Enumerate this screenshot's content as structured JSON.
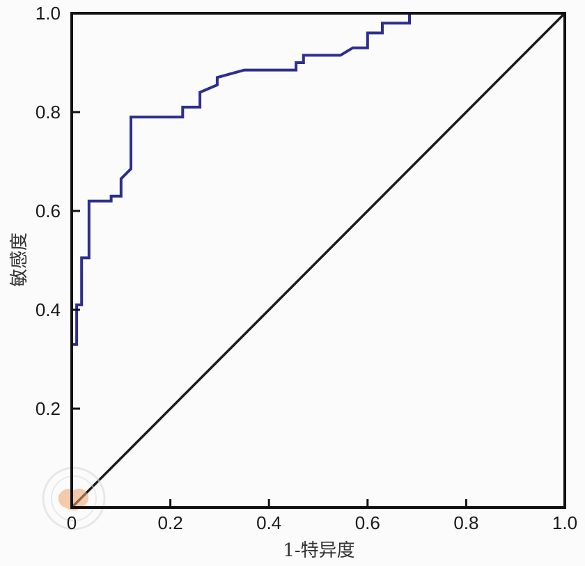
{
  "chart_data": {
    "type": "line",
    "title": "",
    "xlabel": "1-特异度",
    "ylabel": "敏感度",
    "xlim": [
      0,
      1
    ],
    "ylim": [
      0,
      1
    ],
    "x_ticks": [
      "0",
      "0.2",
      "0.4",
      "0.6",
      "0.8",
      "1.0"
    ],
    "y_ticks": [
      "0.2",
      "0.4",
      "0.6",
      "0.8",
      "1.0"
    ],
    "grid": false,
    "legend": "none",
    "series": [
      {
        "color": "#2e2e8f",
        "step": true,
        "x": [
          0,
          0,
          0.01,
          0.01,
          0.02,
          0.02,
          0.035,
          0.035,
          0.05,
          0.05,
          0.08,
          0.08,
          0.1,
          0.1,
          0.12,
          0.12,
          0.225,
          0.225,
          0.26,
          0.26,
          0.295,
          0.295,
          0.35,
          0.455,
          0.455,
          0.47,
          0.47,
          0.545,
          0.545,
          0.57,
          0.6,
          0.6,
          0.63,
          0.63,
          0.685,
          0.685,
          1.0
        ],
        "y": [
          0,
          0.33,
          0.33,
          0.41,
          0.41,
          0.505,
          0.505,
          0.62,
          0.62,
          0.62,
          0.62,
          0.63,
          0.63,
          0.665,
          0.685,
          0.79,
          0.79,
          0.81,
          0.81,
          0.84,
          0.855,
          0.87,
          0.885,
          0.885,
          0.9,
          0.9,
          0.915,
          0.915,
          0.915,
          0.93,
          0.93,
          0.96,
          0.96,
          0.98,
          0.98,
          1.0,
          1.0
        ]
      },
      {
        "color": "#1a1a1a",
        "x": [
          0,
          1
        ],
        "y": [
          0,
          1
        ]
      }
    ],
    "colors": {
      "frame": "#111111",
      "roc": "#2e2e8f",
      "diagonal": "#1a1a1a",
      "watermark": "#f0a36e"
    }
  }
}
